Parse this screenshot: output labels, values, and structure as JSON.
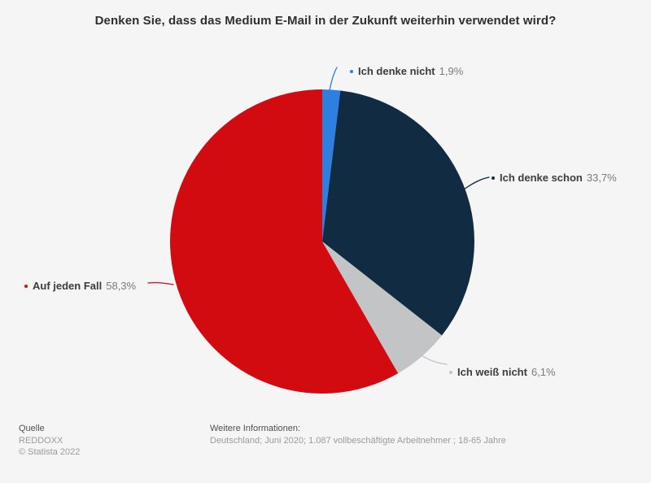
{
  "title": "Denken Sie, dass das Medium E-Mail in der Zukunft weiterhin verwendet wird?",
  "colors": {
    "background": "#f5f5f6",
    "title_text": "#2f2f2f",
    "label_text": "#3c3c3c",
    "value_text": "#7b7b7b"
  },
  "chart_data": {
    "type": "pie",
    "title": "Denken Sie, dass das Medium E-Mail in der Zukunft weiterhin verwendet wird?",
    "start_angle_deg": 0,
    "direction": "clockwise",
    "unit": "%",
    "slices": [
      {
        "label": "Ich denke nicht",
        "value": 1.9,
        "value_label": "1,9%",
        "color": "#2d7fe0"
      },
      {
        "label": "Ich denke schon",
        "value": 33.7,
        "value_label": "33,7%",
        "color": "#112b42"
      },
      {
        "label": "Ich weiß nicht",
        "value": 6.1,
        "value_label": "6,1%",
        "color": "#c3c4c6"
      },
      {
        "label": "Auf jeden Fall",
        "value": 58.3,
        "value_label": "58,3%",
        "color": "#d20b10"
      }
    ]
  },
  "footer": {
    "source_label": "Quelle",
    "source": "REDDOXX",
    "copyright": "© Statista 2022",
    "info_label": "Weitere Informationen:",
    "info": "Deutschland; Juni 2020; 1.087 vollbeschäftigte Arbeitnehmer ; 18-65 Jahre"
  }
}
